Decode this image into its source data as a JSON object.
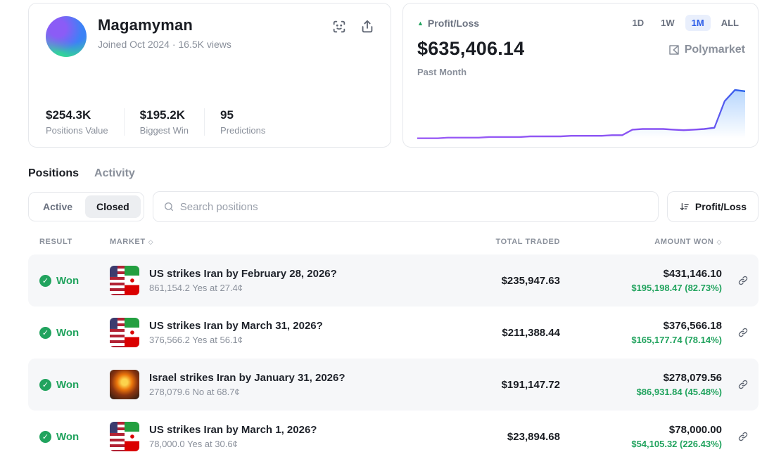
{
  "profile": {
    "name": "Magamyman",
    "joined": "Joined Oct 2024 · 16.5K views",
    "stats": [
      {
        "value": "$254.3K",
        "label": "Positions Value"
      },
      {
        "value": "$195.2K",
        "label": "Biggest Win"
      },
      {
        "value": "95",
        "label": "Predictions"
      }
    ]
  },
  "pnl": {
    "label": "Profit/Loss",
    "value": "$635,406.14",
    "period_label": "Past Month",
    "ranges": [
      "1D",
      "1W",
      "1M",
      "ALL"
    ],
    "active_range": "1M",
    "brand": "Polymarket"
  },
  "chart_data": {
    "type": "line",
    "title": "Profit/Loss",
    "period": "Past Month",
    "end_value": "$635,406.14",
    "y_normalized": [
      14,
      14,
      14,
      15,
      15,
      15,
      15,
      16,
      16,
      16,
      16,
      17,
      17,
      17,
      17,
      18,
      18,
      18,
      18,
      19,
      19,
      28,
      29,
      29,
      29,
      28,
      27,
      28,
      29,
      31,
      74,
      92,
      90
    ],
    "ylim": [
      0,
      100
    ],
    "grid": false,
    "legend": false,
    "line_colors": {
      "start": "#a855f7",
      "end": "#2563eb"
    }
  },
  "tabs": [
    {
      "label": "Positions",
      "active": true
    },
    {
      "label": "Activity",
      "active": false
    }
  ],
  "filters": {
    "segments": [
      {
        "label": "Active",
        "active": false
      },
      {
        "label": "Closed",
        "active": true
      }
    ],
    "search_placeholder": "Search positions",
    "search_value": "",
    "sort_button": "Profit/Loss"
  },
  "table": {
    "headers": [
      {
        "label": "RESULT",
        "sortable": false
      },
      {
        "label": "MARKET",
        "sortable": true
      },
      {
        "label": "TOTAL TRADED",
        "sortable": false
      },
      {
        "label": "AMOUNT WON",
        "sortable": true
      }
    ],
    "rows": [
      {
        "result": "Won",
        "market": "US strikes Iran by February 28, 2026?",
        "detail": "861,154.2 Yes at 27.4¢",
        "total_traded": "$235,947.63",
        "amount_won": "$431,146.10",
        "profit": "$195,198.47 (82.73%)",
        "image": "us-iran"
      },
      {
        "result": "Won",
        "market": "US strikes Iran by March 31, 2026?",
        "detail": "376,566.2 Yes at 56.1¢",
        "total_traded": "$211,388.44",
        "amount_won": "$376,566.18",
        "profit": "$165,177.74 (78.14%)",
        "image": "us-iran"
      },
      {
        "result": "Won",
        "market": "Israel strikes Iran by January 31, 2026?",
        "detail": "278,079.6 No at 68.7¢",
        "total_traded": "$191,147.72",
        "amount_won": "$278,079.56",
        "profit": "$86,931.84 (45.48%)",
        "image": "explosion"
      },
      {
        "result": "Won",
        "market": "US strikes Iran by March 1, 2026?",
        "detail": "78,000.0 Yes at 30.6¢",
        "total_traded": "$23,894.68",
        "amount_won": "$78,000.00",
        "profit": "$54,105.32 (226.43%)",
        "image": "us-iran"
      }
    ]
  },
  "colors": {
    "accent_blue": "#2f5fe8",
    "accent_blue_bg": "#e9effc",
    "green": "#21a35e",
    "border": "#e6e8ec",
    "muted_text": "#8a909b",
    "row_alt_bg": "#f6f7f9"
  }
}
